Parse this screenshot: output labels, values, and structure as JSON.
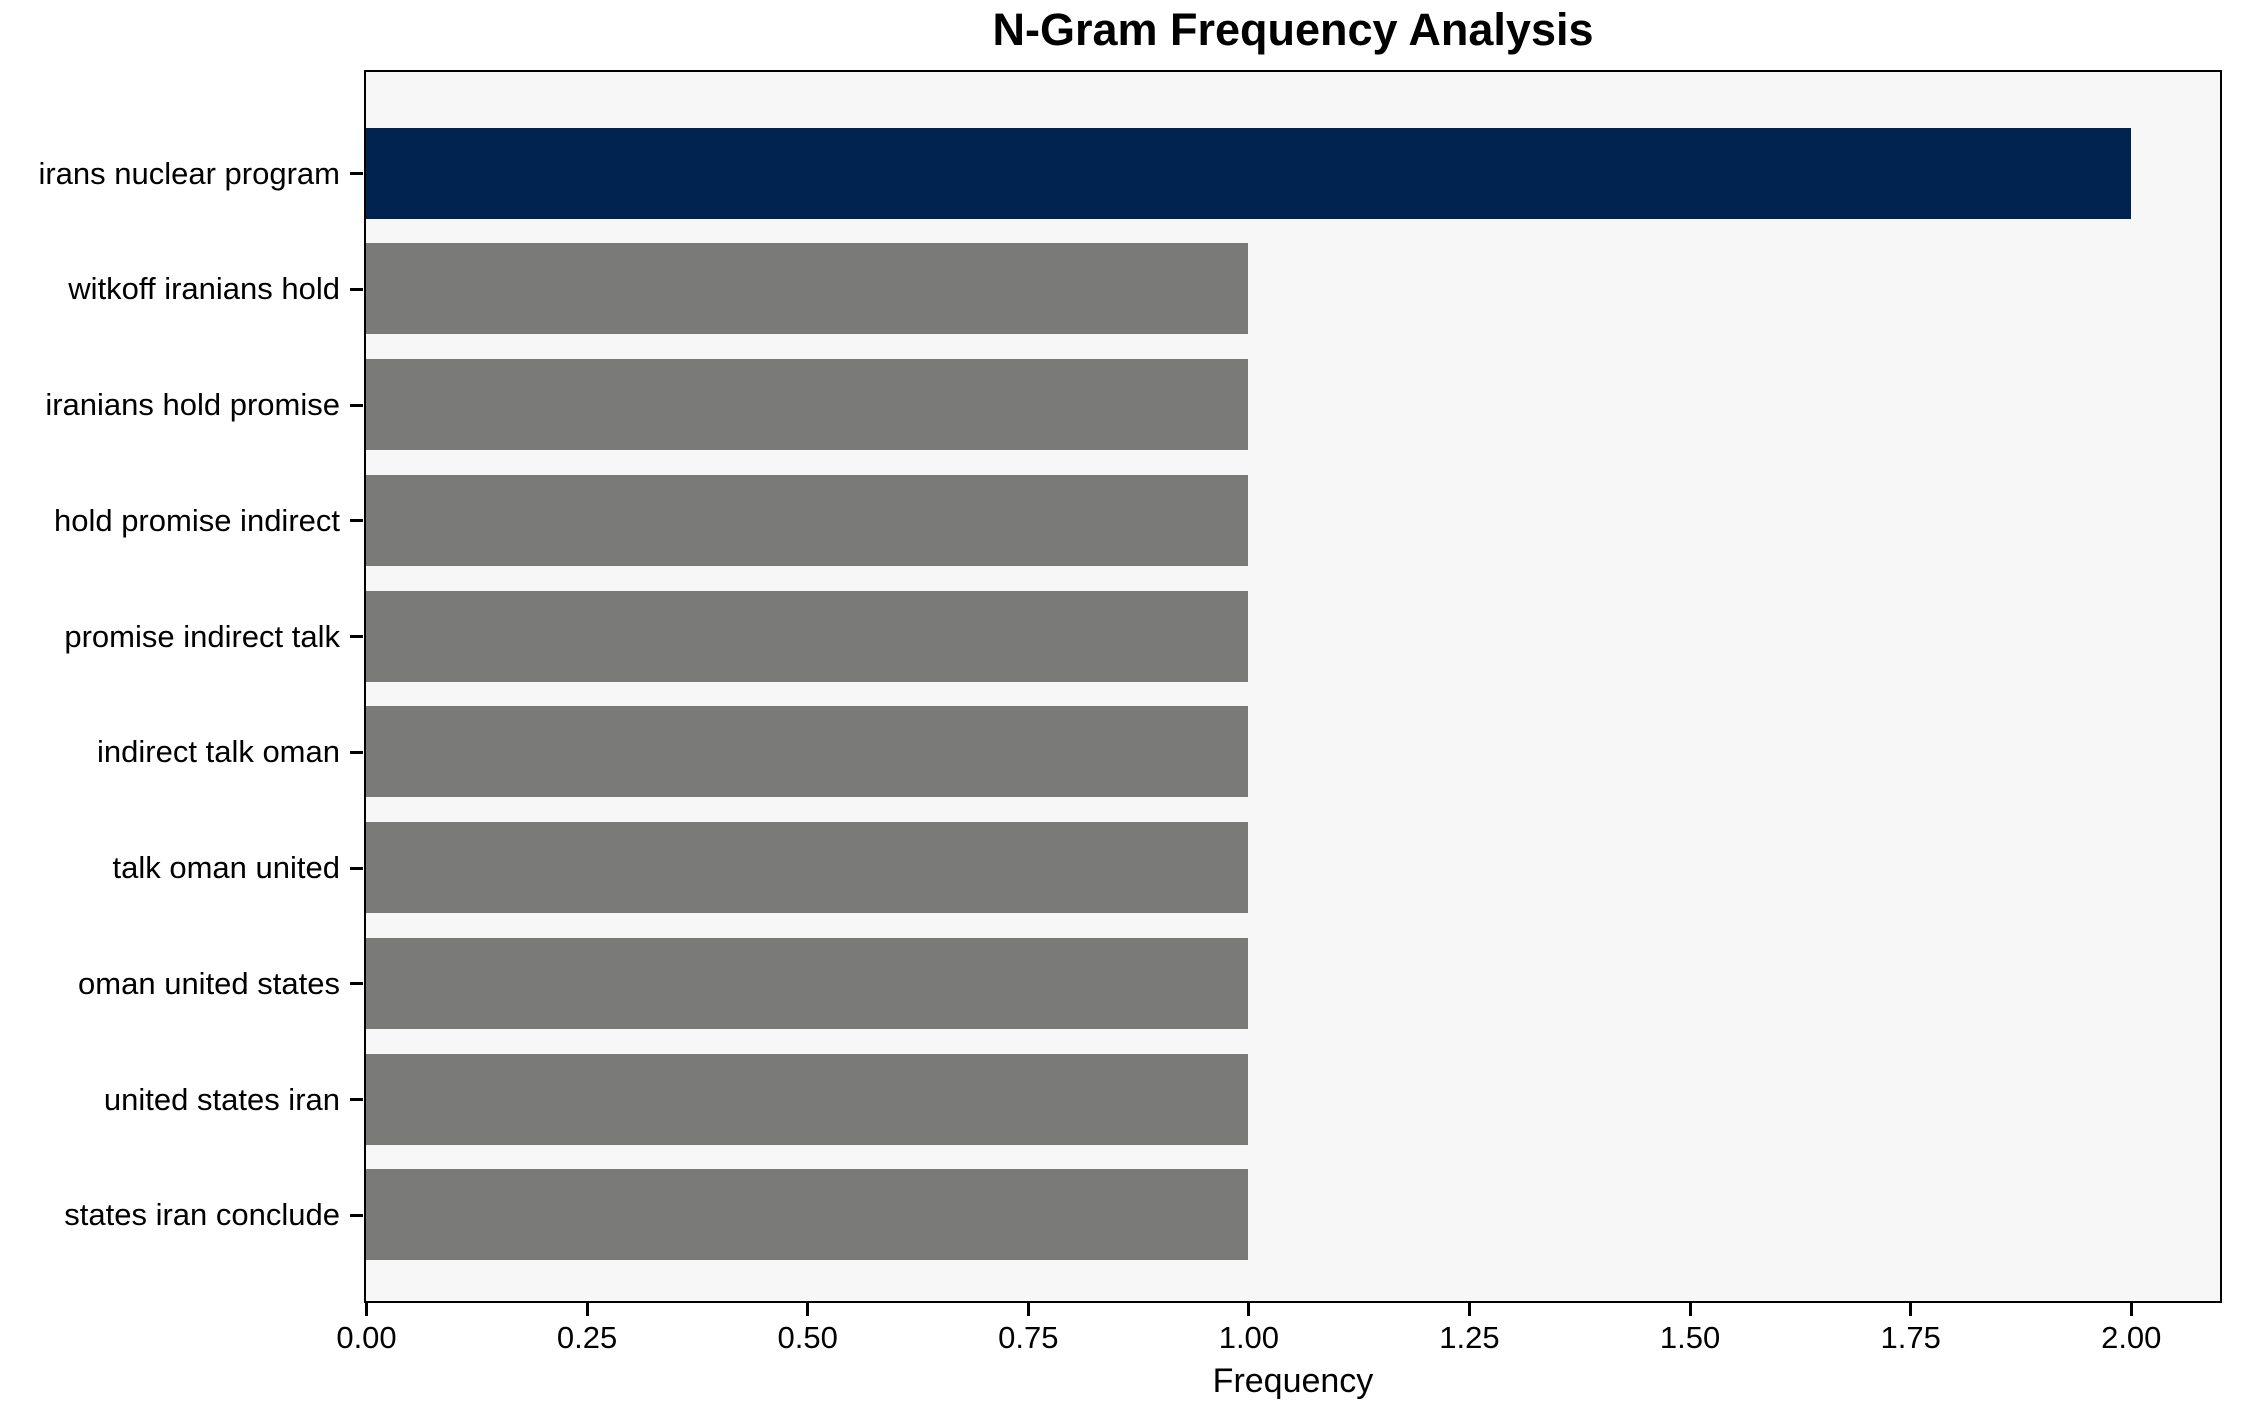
{
  "page": {
    "background": "#ffffff"
  },
  "chart_data": {
    "type": "bar",
    "orientation": "horizontal",
    "title": "N-Gram Frequency Analysis",
    "xlabel": "Frequency",
    "ylabel": "",
    "categories": [
      "irans nuclear program",
      "witkoff iranians hold",
      "iranians hold promise",
      "hold promise indirect",
      "promise indirect talk",
      "indirect talk oman",
      "talk oman united",
      "oman united states",
      "united states iran",
      "states iran conclude"
    ],
    "values": [
      2,
      1,
      1,
      1,
      1,
      1,
      1,
      1,
      1,
      1
    ],
    "highlight_index": 0,
    "xlim": [
      0,
      2.1
    ],
    "xticks": [
      0,
      0.25,
      0.5,
      0.75,
      1.0,
      1.25,
      1.5,
      1.75,
      2.0
    ],
    "xtick_labels": [
      "0.00",
      "0.25",
      "0.50",
      "0.75",
      "1.00",
      "1.25",
      "1.50",
      "1.75",
      "2.00"
    ],
    "grid": false,
    "legend": null,
    "colors": {
      "highlight_bar": "#002350",
      "default_bar": "#7a7a78",
      "plot_background": "#f7f7f7",
      "axis": "#000000",
      "text": "#000000"
    }
  }
}
